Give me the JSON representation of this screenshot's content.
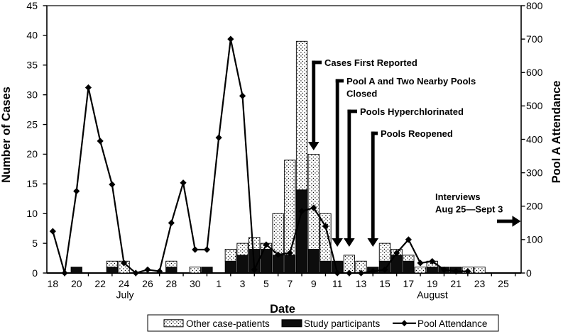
{
  "chart_data": {
    "type": "combo-bar-line",
    "title": "",
    "x_axis": {
      "title": "Date",
      "month_labels": {
        "july": "July",
        "august": "August"
      },
      "categories": [
        "Jul 18",
        "Jul 19",
        "Jul 20",
        "Jul 21",
        "Jul 22",
        "Jul 23",
        "Jul 24",
        "Jul 25",
        "Jul 26",
        "Jul 27",
        "Jul 28",
        "Jul 29",
        "Jul 30",
        "Jul 31",
        "Aug 1",
        "Aug 2",
        "Aug 3",
        "Aug 4",
        "Aug 5",
        "Aug 6",
        "Aug 7",
        "Aug 8",
        "Aug 9",
        "Aug 10",
        "Aug 11",
        "Aug 12",
        "Aug 13",
        "Aug 14",
        "Aug 15",
        "Aug 16",
        "Aug 17",
        "Aug 18",
        "Aug 19",
        "Aug 20",
        "Aug 21",
        "Aug 22",
        "Aug 23",
        "Aug 24",
        "Aug 25",
        "Aug 26"
      ],
      "day_labels": [
        "18",
        "",
        "20",
        "",
        "22",
        "",
        "24",
        "",
        "26",
        "",
        "28",
        "",
        "30",
        "",
        "1",
        "",
        "3",
        "",
        "5",
        "",
        "7",
        "",
        "9",
        "",
        "11",
        "",
        "13",
        "",
        "15",
        "",
        "17",
        "",
        "19",
        "",
        "21",
        "",
        "23",
        "",
        "25",
        ""
      ]
    },
    "y_left_axis": {
      "title": "Number of Cases",
      "min": 0,
      "max": 45,
      "step": 5,
      "tick_labels": [
        "0",
        "5",
        "10",
        "15",
        "20",
        "25",
        "30",
        "35",
        "40",
        "45"
      ]
    },
    "y_right_axis": {
      "title": "Pool A Attendance",
      "min": 0,
      "max": 800,
      "step": 100,
      "tick_labels": [
        "0",
        "100",
        "200",
        "300",
        "400",
        "500",
        "600",
        "700",
        "800"
      ]
    },
    "series": {
      "study_participants": {
        "label": "Study participants",
        "type": "bar",
        "stack_position": "bottom",
        "fill": "solid-black",
        "axis": "left",
        "values": [
          0,
          0,
          1,
          0,
          0,
          1,
          0,
          0,
          0,
          0,
          1,
          0,
          0,
          1,
          0,
          2,
          3,
          4,
          4,
          3,
          3,
          14,
          4,
          2,
          2,
          0,
          0,
          1,
          2,
          3,
          2,
          0,
          1,
          1,
          1,
          0,
          0,
          0,
          0,
          0
        ]
      },
      "other_case_patients": {
        "label": "Other case-patients",
        "type": "bar",
        "stack_position": "top",
        "fill": "dotted-pattern",
        "axis": "left",
        "values": [
          0,
          0,
          0,
          0,
          0,
          1,
          2,
          0,
          0,
          0,
          1,
          0,
          1,
          0,
          0,
          2,
          2,
          2,
          1,
          7,
          16,
          25,
          16,
          8,
          0,
          3,
          2,
          0,
          3,
          1,
          1,
          1,
          1,
          0,
          0,
          1,
          1,
          0,
          0,
          0
        ]
      },
      "pool_attendance": {
        "label": "Pool Attendance",
        "type": "line",
        "marker": "diamond",
        "axis": "right",
        "values": [
          125,
          0,
          245,
          555,
          395,
          265,
          30,
          0,
          10,
          5,
          150,
          270,
          70,
          70,
          405,
          700,
          530,
          10,
          85,
          55,
          60,
          185,
          195,
          140,
          0,
          0,
          0,
          5,
          10,
          60,
          100,
          30,
          35,
          10,
          5,
          5,
          null,
          null,
          null,
          null
        ]
      }
    },
    "annotations": [
      {
        "id": "cases-first-reported",
        "lines": [
          "Cases First Reported"
        ],
        "arrow": "down",
        "date_pointed": "Aug 9"
      },
      {
        "id": "pools-closed",
        "lines": [
          "Pool A and Two Nearby Pools",
          "Closed"
        ],
        "arrow": "down",
        "date_pointed": "Aug 11"
      },
      {
        "id": "pools-hyperchlorinated",
        "lines": [
          "Pools Hyperchlorinated"
        ],
        "arrow": "down",
        "date_pointed": "Aug 12"
      },
      {
        "id": "pools-reopened",
        "lines": [
          "Pools Reopened"
        ],
        "arrow": "down",
        "date_pointed": "Aug 14"
      },
      {
        "id": "interviews",
        "lines": [
          "Interviews",
          "Aug 25—Sept 3"
        ],
        "arrow": "right",
        "date_pointed": null
      }
    ],
    "legend": [
      {
        "id": "other-case-patients",
        "label": "Other case-patients",
        "swatch": "dotted-bar"
      },
      {
        "id": "study-participants",
        "label": "Study participants",
        "swatch": "solid-bar"
      },
      {
        "id": "pool-attendance",
        "label": "Pool Attendance",
        "swatch": "line-diamond"
      }
    ],
    "layout_hints": {
      "grid": false,
      "legend_position": "bottom",
      "x_range_days": 40
    },
    "colors": {
      "bar_solid": "#0d0d0d",
      "bar_dotted_bg": "#ffffff",
      "dot": "#000000",
      "line": "#000000",
      "text": "#000000",
      "background": "#ffffff"
    }
  }
}
